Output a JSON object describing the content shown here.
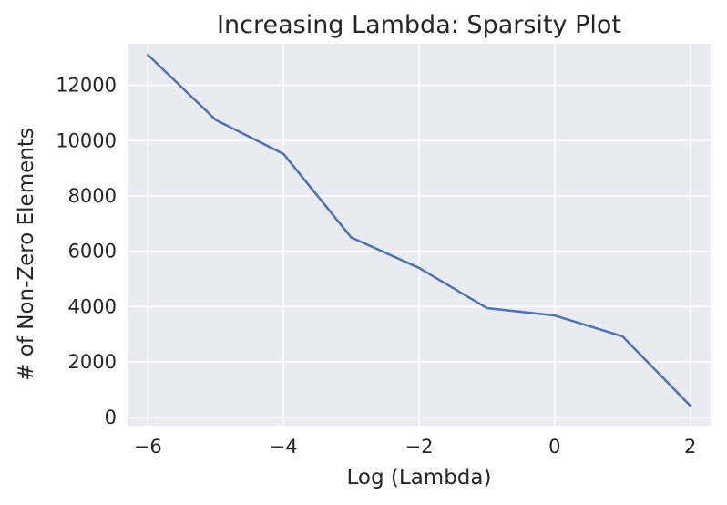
{
  "chart_data": {
    "type": "line",
    "title": "Increasing Lambda: Sparsity Plot",
    "xlabel": "Log (Lambda)",
    "ylabel": "# of Non-Zero Elements",
    "xlim": [
      -6.3,
      2.3
    ],
    "ylim": [
      -300,
      13500
    ],
    "xticks": [
      -6,
      -4,
      -2,
      0,
      2
    ],
    "xtick_labels": [
      "−6",
      "−4",
      "−2",
      "0",
      "2"
    ],
    "yticks": [
      0,
      2000,
      4000,
      6000,
      8000,
      10000,
      12000
    ],
    "ytick_labels": [
      "0",
      "2000",
      "4000",
      "6000",
      "8000",
      "10000",
      "12000"
    ],
    "grid": true,
    "colors": {
      "background": "#eaeaf2",
      "grid": "#ffffff",
      "line": "#4c72b0"
    },
    "series": [
      {
        "x": [
          -6,
          -5,
          -4,
          -3,
          -2,
          -1,
          0,
          1,
          2
        ],
        "values": [
          13100,
          10750,
          9520,
          6500,
          5400,
          3950,
          3680,
          2930,
          420
        ]
      }
    ]
  }
}
